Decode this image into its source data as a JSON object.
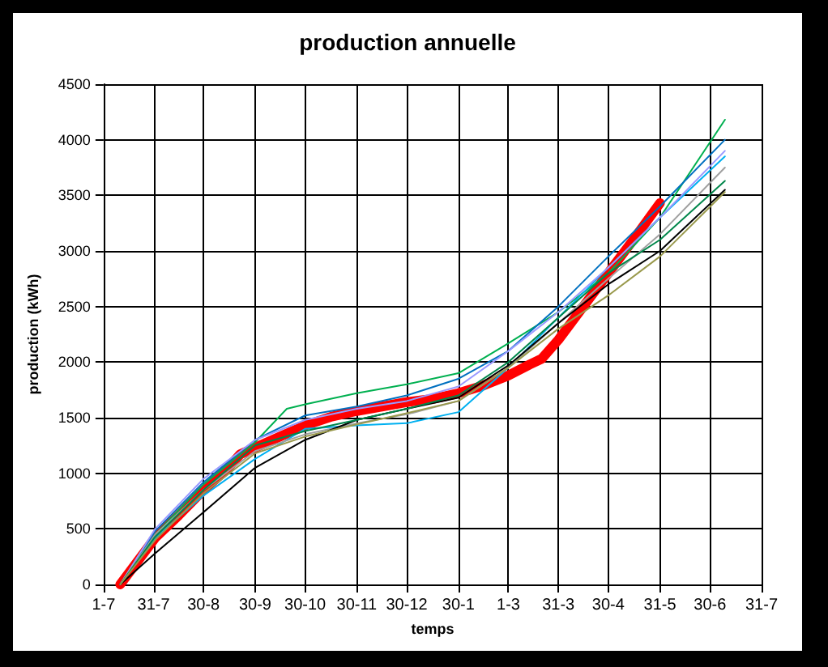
{
  "chart_data": {
    "type": "line",
    "title": "production annuelle",
    "xlabel": "temps",
    "ylabel": "production (kWh)",
    "xlim": [
      "2009-07-01",
      "2010-07-31"
    ],
    "ylim": [
      0,
      4500
    ],
    "xticks": [
      {
        "value": "2009-07-01",
        "label": "1-7"
      },
      {
        "value": "2009-07-31",
        "label": "31-7"
      },
      {
        "value": "2009-08-30",
        "label": "30-8"
      },
      {
        "value": "2009-09-30",
        "label": "30-9"
      },
      {
        "value": "2009-10-30",
        "label": "30-10"
      },
      {
        "value": "2009-11-30",
        "label": "30-11"
      },
      {
        "value": "2009-12-30",
        "label": "30-12"
      },
      {
        "value": "2010-01-30",
        "label": "30-1"
      },
      {
        "value": "2010-03-01",
        "label": "1-3"
      },
      {
        "value": "2010-03-31",
        "label": "31-3"
      },
      {
        "value": "2010-04-30",
        "label": "30-4"
      },
      {
        "value": "2010-05-31",
        "label": "31-5"
      },
      {
        "value": "2010-06-30",
        "label": "30-6"
      },
      {
        "value": "2010-07-31",
        "label": "31-7"
      }
    ],
    "yticks": [
      0,
      500,
      1000,
      1500,
      2000,
      2500,
      3000,
      3500,
      4000,
      4500
    ],
    "grid": true,
    "marker": "none",
    "line_style": "solid",
    "series": [
      {
        "color": "#00b050",
        "x": [
          "2009-07-11",
          "2009-08-01",
          "2009-08-30",
          "2009-09-30",
          "2009-10-19",
          "2009-10-30",
          "2009-11-30",
          "2009-12-30",
          "2010-01-30",
          "2010-02-27",
          "2010-03-31",
          "2010-04-30",
          "2010-05-31",
          "2010-07-09"
        ],
        "values": [
          0,
          450,
          900,
          1280,
          1580,
          1620,
          1720,
          1800,
          1900,
          2150,
          2450,
          2800,
          3300,
          4180
        ]
      },
      {
        "color": "#0070c0",
        "x": [
          "2009-07-11",
          "2009-08-01",
          "2009-08-30",
          "2009-09-30",
          "2009-10-30",
          "2009-11-30",
          "2009-12-30",
          "2010-01-30",
          "2010-03-01",
          "2010-03-31",
          "2010-04-30",
          "2010-05-31",
          "2010-07-09"
        ],
        "values": [
          0,
          480,
          920,
          1300,
          1520,
          1600,
          1700,
          1850,
          2100,
          2500,
          2950,
          3400,
          4000
        ]
      },
      {
        "color": "#00b0f0",
        "x": [
          "2009-07-11",
          "2009-08-01",
          "2009-08-30",
          "2009-09-30",
          "2009-10-30",
          "2009-11-30",
          "2009-12-30",
          "2010-01-30",
          "2010-03-01",
          "2010-03-31",
          "2010-04-30",
          "2010-05-31",
          "2010-07-09"
        ],
        "values": [
          0,
          420,
          800,
          1130,
          1400,
          1430,
          1450,
          1550,
          1950,
          2400,
          2850,
          3300,
          3850
        ]
      },
      {
        "color": "#9999ff",
        "x": [
          "2009-07-11",
          "2009-08-01",
          "2009-08-30",
          "2009-09-30",
          "2009-10-30",
          "2009-11-30",
          "2009-12-30",
          "2010-01-30",
          "2010-03-01",
          "2010-03-31",
          "2010-04-30",
          "2010-05-31",
          "2010-07-09"
        ],
        "values": [
          0,
          500,
          950,
          1300,
          1480,
          1580,
          1650,
          1780,
          2100,
          2450,
          2850,
          3300,
          3900
        ]
      },
      {
        "color": "#a0a0a0",
        "x": [
          "2009-07-11",
          "2009-08-01",
          "2009-08-30",
          "2009-09-30",
          "2009-10-30",
          "2009-11-30",
          "2009-12-30",
          "2010-01-30",
          "2010-03-01",
          "2010-03-31",
          "2010-04-30",
          "2010-05-31",
          "2010-07-09"
        ],
        "values": [
          0,
          450,
          850,
          1200,
          1350,
          1450,
          1530,
          1650,
          1950,
          2350,
          2750,
          3150,
          3750
        ]
      },
      {
        "color": "#000000",
        "x": [
          "2009-07-11",
          "2009-08-01",
          "2009-08-30",
          "2009-09-30",
          "2009-10-30",
          "2009-11-30",
          "2009-12-30",
          "2010-01-30",
          "2010-03-01",
          "2010-03-31",
          "2010-04-30",
          "2010-05-31",
          "2010-07-09"
        ],
        "values": [
          0,
          280,
          650,
          1050,
          1300,
          1480,
          1580,
          1680,
          1970,
          2350,
          2700,
          3000,
          3550
        ]
      },
      {
        "color": "#00864a",
        "x": [
          "2009-07-11",
          "2009-08-01",
          "2009-08-30",
          "2009-09-30",
          "2009-10-30",
          "2009-11-30",
          "2009-12-30",
          "2010-01-30",
          "2010-03-01",
          "2010-03-31",
          "2010-04-30",
          "2010-05-31",
          "2010-07-09"
        ],
        "values": [
          0,
          430,
          850,
          1250,
          1380,
          1480,
          1580,
          1700,
          2000,
          2400,
          2800,
          3100,
          3630
        ]
      },
      {
        "color": "#99994c",
        "x": [
          "2009-07-11",
          "2009-08-01",
          "2009-08-30",
          "2009-09-30",
          "2009-10-30",
          "2009-11-30",
          "2009-12-30",
          "2010-01-30",
          "2010-03-01",
          "2010-03-31",
          "2010-04-30",
          "2010-05-31",
          "2010-07-09"
        ],
        "values": [
          0,
          400,
          820,
          1180,
          1330,
          1440,
          1540,
          1650,
          1950,
          2300,
          2600,
          2950,
          3530
        ]
      },
      {
        "color": "#ff0000",
        "x": [
          "2009-07-11",
          "2009-07-21",
          "2009-08-01",
          "2009-08-15",
          "2009-08-30",
          "2009-09-14",
          "2009-09-21",
          "2009-09-30",
          "2009-10-15",
          "2009-10-30",
          "2009-11-15",
          "2009-11-30",
          "2009-12-15",
          "2009-12-30",
          "2010-01-15",
          "2010-01-30",
          "2010-02-14",
          "2010-03-01",
          "2010-03-14",
          "2010-03-21",
          "2010-03-31",
          "2010-04-15",
          "2010-04-30",
          "2010-05-15",
          "2010-05-31"
        ],
        "values": [
          0,
          200,
          420,
          620,
          850,
          1050,
          1170,
          1230,
          1330,
          1430,
          1510,
          1560,
          1600,
          1640,
          1670,
          1720,
          1790,
          1880,
          1980,
          2030,
          2200,
          2500,
          2800,
          3100,
          3430
        ]
      }
    ]
  }
}
